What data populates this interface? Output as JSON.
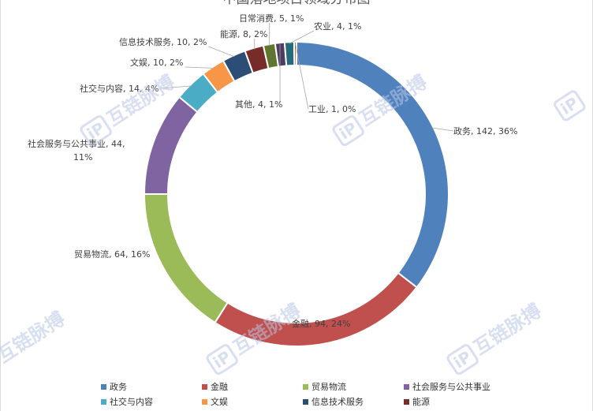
{
  "chart_data": {
    "type": "pie",
    "title": "中国落地项目领域分布图",
    "categories": [
      "政务",
      "金融",
      "贸易物流",
      "社会服务与公共事业",
      "社交与内容",
      "文娱",
      "信息技术服务",
      "能源",
      "日常消费",
      "其他",
      "农业",
      "工业"
    ],
    "values": [
      142,
      94,
      64,
      44,
      14,
      10,
      10,
      8,
      5,
      4,
      4,
      1
    ],
    "percents": [
      "36%",
      "24%",
      "16%",
      "11%",
      "4%",
      "2%",
      "2%",
      "2%",
      "1%",
      "1%",
      "1%",
      "0%"
    ],
    "colors": [
      "#4f81bd",
      "#c0504d",
      "#9bbb59",
      "#8064a2",
      "#4bacc6",
      "#f79646",
      "#2c4d75",
      "#772c2a",
      "#5f7530",
      "#4d3b62",
      "#276a7c",
      "#b65708"
    ],
    "data_labels": [
      "政务, 142, 36%",
      "金融, 94, 24%",
      "贸易物流, 64, 16%",
      "社会服务与公共事业, 44,|11%",
      "社交与内容, 14, 4%",
      "文娱, 10, 2%",
      "信息技术服务, 10, 2%",
      "能源, 8, 2%",
      "日常消费, 5, 1%",
      "其他, 4, 1%",
      "农业, 4, 1%",
      "工业, 1, 0%"
    ],
    "legend": [
      "政务",
      "金融",
      "贸易物流",
      "社会服务与公共事业",
      "社交与内容",
      "文娱",
      "信息技术服务",
      "能源"
    ],
    "legend_position": "bottom",
    "chart_style": "doughnut"
  },
  "watermark": {
    "text": "互链脉搏",
    "icon": "ip-logo-icon"
  }
}
